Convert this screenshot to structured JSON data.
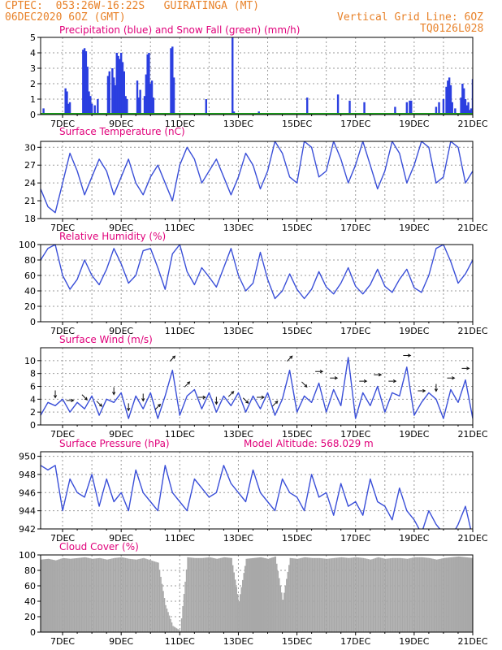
{
  "header": {
    "line1_left": "CPTEC:  053:26W-16:22S   GUIRATINGA (MT)",
    "line2_left": "06DEC2020 6OZ (GMT)",
    "line2_right": "Vertical Grid Line: 6OZ",
    "line3_right": "TQ0126L028"
  },
  "colors": {
    "header": "#e8822a",
    "title": "#e0007a",
    "precip": "#2b3fe0",
    "snow": "#1aa31a",
    "line": "#3a4fd8",
    "cloud": "#a8a8a8",
    "grid": "#9a9a9a",
    "arrow": "#111111"
  },
  "x_axis": {
    "days": [
      7,
      9,
      11,
      13,
      15,
      17,
      19,
      21
    ],
    "labels": [
      "7DEC",
      "9DEC",
      "11DEC",
      "13DEC",
      "15DEC",
      "17DEC",
      "19DEC",
      "21DEC"
    ],
    "start_day": 6.25,
    "end_day": 21.0
  },
  "chart_data": [
    {
      "type": "bar",
      "title": "Precipitation (blue) and Snow Fall (green) (mm/h)",
      "ylim": [
        0,
        5
      ],
      "yticks": [
        0,
        1,
        2,
        3,
        4,
        5
      ],
      "x_units": "day of December 2020",
      "series": [
        {
          "name": "Precipitation",
          "color": "#2b3fe0",
          "points": [
            [
              6.35,
              0.4
            ],
            [
              7.1,
              1.7
            ],
            [
              7.15,
              1.5
            ],
            [
              7.2,
              0.7
            ],
            [
              7.25,
              0.8
            ],
            [
              7.7,
              4.2
            ],
            [
              7.75,
              4.3
            ],
            [
              7.8,
              4.1
            ],
            [
              7.85,
              3.1
            ],
            [
              7.9,
              1.5
            ],
            [
              7.95,
              1.2
            ],
            [
              8.0,
              0.7
            ],
            [
              8.1,
              0.6
            ],
            [
              8.2,
              1.0
            ],
            [
              8.55,
              2.5
            ],
            [
              8.6,
              2.8
            ],
            [
              8.7,
              3.0
            ],
            [
              8.75,
              2.4
            ],
            [
              8.8,
              1.9
            ],
            [
              8.85,
              4.0
            ],
            [
              8.9,
              3.8
            ],
            [
              8.95,
              3.6
            ],
            [
              9.0,
              4.0
            ],
            [
              9.05,
              3.4
            ],
            [
              9.1,
              2.8
            ],
            [
              9.15,
              1.2
            ],
            [
              9.2,
              1.0
            ],
            [
              9.55,
              2.2
            ],
            [
              9.6,
              1.1
            ],
            [
              9.65,
              1.6
            ],
            [
              9.8,
              1.2
            ],
            [
              9.85,
              2.6
            ],
            [
              9.9,
              3.9
            ],
            [
              9.95,
              4.0
            ],
            [
              10.0,
              2.0
            ],
            [
              10.05,
              2.2
            ],
            [
              10.1,
              1.1
            ],
            [
              10.7,
              4.3
            ],
            [
              10.75,
              4.4
            ],
            [
              10.8,
              2.4
            ],
            [
              11.9,
              1.0
            ],
            [
              12.8,
              5.0
            ],
            [
              12.85,
              0.2
            ],
            [
              13.7,
              0.2
            ],
            [
              15.35,
              1.1
            ],
            [
              16.4,
              1.3
            ],
            [
              16.8,
              0.9
            ],
            [
              17.3,
              0.8
            ],
            [
              18.35,
              0.5
            ],
            [
              18.75,
              0.8
            ],
            [
              18.85,
              0.9
            ],
            [
              18.9,
              0.9
            ],
            [
              19.75,
              0.5
            ],
            [
              19.85,
              0.8
            ],
            [
              20.0,
              1.0
            ],
            [
              20.1,
              1.8
            ],
            [
              20.15,
              2.2
            ],
            [
              20.2,
              2.4
            ],
            [
              20.25,
              1.9
            ],
            [
              20.3,
              0.8
            ],
            [
              20.4,
              0.4
            ],
            [
              20.6,
              1.1
            ],
            [
              20.65,
              2.0
            ],
            [
              20.7,
              1.7
            ],
            [
              20.75,
              1.0
            ],
            [
              20.8,
              0.6
            ],
            [
              20.85,
              0.8
            ],
            [
              20.9,
              0.3
            ],
            [
              20.95,
              0.4
            ],
            [
              21.0,
              2.3
            ]
          ]
        },
        {
          "name": "Snow Fall",
          "color": "#1aa31a",
          "constant": 0
        }
      ]
    },
    {
      "type": "line",
      "title": "Surface Temperature (nC)",
      "ylim": [
        18,
        31
      ],
      "yticks": [
        18,
        21,
        24,
        27,
        30
      ],
      "series": [
        {
          "name": "Surface Temperature",
          "x": [
            6.25,
            6.5,
            6.75,
            7.0,
            7.25,
            7.5,
            7.75,
            8.0,
            8.25,
            8.5,
            8.75,
            9.0,
            9.25,
            9.5,
            9.75,
            10.0,
            10.25,
            10.5,
            10.75,
            11.0,
            11.25,
            11.5,
            11.75,
            12.0,
            12.25,
            12.5,
            12.75,
            13.0,
            13.25,
            13.5,
            13.75,
            14.0,
            14.25,
            14.5,
            14.75,
            15.0,
            15.25,
            15.5,
            15.75,
            16.0,
            16.25,
            16.5,
            16.75,
            17.0,
            17.25,
            17.5,
            17.75,
            18.0,
            18.25,
            18.5,
            18.75,
            19.0,
            19.25,
            19.5,
            19.75,
            20.0,
            20.25,
            20.5,
            20.75,
            21.0
          ],
          "y": [
            23,
            20,
            19,
            24,
            29,
            26,
            22,
            25,
            28,
            26,
            22,
            25,
            28,
            24,
            22,
            25,
            27,
            24,
            21,
            27,
            30,
            28,
            24,
            26,
            28,
            25,
            22,
            25,
            29,
            27,
            23,
            26,
            31,
            29,
            25,
            24,
            31,
            30,
            25,
            26,
            31,
            28,
            24,
            27,
            31,
            27,
            23,
            26,
            31,
            29,
            24,
            27,
            31,
            30,
            24,
            25,
            31,
            30,
            24,
            26
          ]
        }
      ]
    },
    {
      "type": "line",
      "title": "Relative Humidity (%)",
      "ylim": [
        0,
        100
      ],
      "yticks": [
        0,
        20,
        40,
        60,
        80,
        100
      ],
      "series": [
        {
          "name": "Relative Humidity",
          "x": [
            6.25,
            6.5,
            6.75,
            7.0,
            7.25,
            7.5,
            7.75,
            8.0,
            8.25,
            8.5,
            8.75,
            9.0,
            9.25,
            9.5,
            9.75,
            10.0,
            10.25,
            10.5,
            10.75,
            11.0,
            11.25,
            11.5,
            11.75,
            12.0,
            12.25,
            12.5,
            12.75,
            13.0,
            13.25,
            13.5,
            13.75,
            14.0,
            14.25,
            14.5,
            14.75,
            15.0,
            15.25,
            15.5,
            15.75,
            16.0,
            16.25,
            16.5,
            16.75,
            17.0,
            17.25,
            17.5,
            17.75,
            18.0,
            18.25,
            18.5,
            18.75,
            19.0,
            19.25,
            19.5,
            19.75,
            20.0,
            20.25,
            20.5,
            20.75,
            21.0
          ],
          "y": [
            80,
            95,
            100,
            60,
            42,
            55,
            80,
            60,
            48,
            68,
            95,
            75,
            50,
            60,
            92,
            95,
            70,
            42,
            88,
            100,
            65,
            48,
            70,
            58,
            45,
            70,
            95,
            60,
            40,
            50,
            90,
            55,
            30,
            40,
            62,
            42,
            30,
            42,
            65,
            45,
            36,
            50,
            70,
            46,
            36,
            48,
            68,
            46,
            38,
            55,
            68,
            44,
            38,
            60,
            95,
            100,
            78,
            50,
            62,
            80
          ]
        }
      ]
    },
    {
      "type": "line",
      "title": "Surface Wind (m/s)",
      "ylim": [
        0,
        12
      ],
      "yticks": [
        0,
        2,
        4,
        6,
        8,
        10
      ],
      "series": [
        {
          "name": "Surface Wind",
          "x": [
            6.25,
            6.5,
            6.75,
            7.0,
            7.25,
            7.5,
            7.75,
            8.0,
            8.25,
            8.5,
            8.75,
            9.0,
            9.25,
            9.5,
            9.75,
            10.0,
            10.25,
            10.5,
            10.75,
            11.0,
            11.25,
            11.5,
            11.75,
            12.0,
            12.25,
            12.5,
            12.75,
            13.0,
            13.25,
            13.5,
            13.75,
            14.0,
            14.25,
            14.5,
            14.75,
            15.0,
            15.25,
            15.5,
            15.75,
            16.0,
            16.25,
            16.5,
            16.75,
            17.0,
            17.25,
            17.5,
            17.75,
            18.0,
            18.25,
            18.5,
            18.75,
            19.0,
            19.25,
            19.5,
            19.75,
            20.0,
            20.25,
            20.5,
            20.75,
            21.0
          ],
          "y": [
            1.5,
            3.5,
            3.0,
            4.0,
            2.0,
            3.5,
            2.5,
            4.5,
            1.5,
            4.0,
            3.5,
            5.0,
            1.0,
            4.5,
            2.5,
            5.0,
            1.0,
            4.5,
            8.5,
            1.5,
            4.5,
            5.5,
            2.5,
            5.0,
            2.0,
            4.5,
            3.0,
            5.0,
            2.0,
            4.5,
            2.5,
            5.0,
            1.5,
            4.0,
            8.5,
            2.0,
            4.5,
            3.5,
            6.5,
            2.0,
            5.5,
            3.0,
            10.5,
            1.0,
            5.0,
            3.0,
            6.0,
            2.0,
            5.0,
            4.5,
            9.0,
            1.5,
            3.5,
            5.0,
            4.0,
            1.0,
            5.5,
            3.5,
            7.0,
            1.0
          ]
        }
      ],
      "wind_directions_deg": [
        90,
        180,
        180,
        90,
        90,
        180,
        135,
        180,
        135,
        135,
        180,
        135,
        180,
        135,
        180,
        135,
        45,
        135,
        45,
        45,
        45,
        90,
        90,
        90,
        180,
        180,
        45,
        90,
        135,
        90,
        90,
        45,
        45,
        90,
        45,
        90,
        135,
        90,
        90,
        180,
        90,
        135,
        90,
        180,
        90,
        135,
        90,
        180,
        90,
        135,
        90,
        180,
        90,
        90,
        180,
        90,
        90,
        135,
        90,
        90
      ]
    },
    {
      "type": "line",
      "title": "Surface Pressure (hPa)",
      "annotation": "Model Altitude: 568.029 m",
      "ylim": [
        942,
        950.5
      ],
      "yticks": [
        942,
        944,
        946,
        948,
        950
      ],
      "series": [
        {
          "name": "Surface Pressure",
          "x": [
            6.25,
            6.5,
            6.75,
            7.0,
            7.25,
            7.5,
            7.75,
            8.0,
            8.25,
            8.5,
            8.75,
            9.0,
            9.25,
            9.5,
            9.75,
            10.0,
            10.25,
            10.5,
            10.75,
            11.0,
            11.25,
            11.5,
            11.75,
            12.0,
            12.25,
            12.5,
            12.75,
            13.0,
            13.25,
            13.5,
            13.75,
            14.0,
            14.25,
            14.5,
            14.75,
            15.0,
            15.25,
            15.5,
            15.75,
            16.0,
            16.25,
            16.5,
            16.75,
            17.0,
            17.25,
            17.5,
            17.75,
            18.0,
            18.25,
            18.5,
            18.75,
            19.0,
            19.25,
            19.5,
            19.75,
            20.0,
            20.25,
            20.5,
            20.75,
            21.0
          ],
          "y": [
            949,
            948.5,
            949,
            944,
            947.5,
            946,
            945.5,
            948,
            944.5,
            947.5,
            945,
            946,
            944,
            948.5,
            946,
            945,
            944,
            949,
            946,
            945,
            944,
            947.5,
            946.5,
            945.5,
            946,
            949,
            947,
            946,
            945,
            948.5,
            946,
            945,
            944,
            947.5,
            946,
            945.5,
            944,
            948,
            945.5,
            946,
            943.5,
            947,
            944.5,
            945,
            943.5,
            947.5,
            945,
            944.5,
            943,
            946.5,
            944,
            943,
            941.5,
            944,
            942.5,
            941.5,
            941,
            942.5,
            944.5,
            941
          ]
        }
      ]
    },
    {
      "type": "bar",
      "title": "Cloud Cover (%)",
      "ylim": [
        0,
        100
      ],
      "yticks": [
        0,
        20,
        40,
        60,
        80,
        100
      ],
      "series": [
        {
          "name": "Cloud Cover",
          "x": [
            6.25,
            6.5,
            6.75,
            7.0,
            7.25,
            7.5,
            7.75,
            8.0,
            8.25,
            8.5,
            8.75,
            9.0,
            9.25,
            9.5,
            9.75,
            10.0,
            10.25,
            10.5,
            10.75,
            11.0,
            11.25,
            11.5,
            11.75,
            12.0,
            12.25,
            12.5,
            12.75,
            13.0,
            13.25,
            13.5,
            13.75,
            14.0,
            14.25,
            14.5,
            14.75,
            15.0,
            15.25,
            15.5,
            15.75,
            16.0,
            16.25,
            16.5,
            16.75,
            17.0,
            17.25,
            17.5,
            17.75,
            18.0,
            18.25,
            18.5,
            18.75,
            19.0,
            19.25,
            19.5,
            19.75,
            20.0,
            20.25,
            20.5,
            20.75,
            21.0
          ],
          "y": [
            94,
            95,
            93,
            96,
            95,
            96,
            97,
            95,
            96,
            94,
            96,
            97,
            95,
            94,
            96,
            93,
            90,
            35,
            8,
            2,
            97,
            96,
            96,
            97,
            95,
            97,
            96,
            40,
            95,
            96,
            97,
            95,
            98,
            42,
            96,
            95,
            97,
            96,
            96,
            95,
            96,
            97,
            96,
            97,
            96,
            94,
            97,
            95,
            96,
            96,
            95,
            97,
            97,
            96,
            94,
            96,
            97,
            98,
            97,
            96
          ]
        }
      ]
    }
  ]
}
